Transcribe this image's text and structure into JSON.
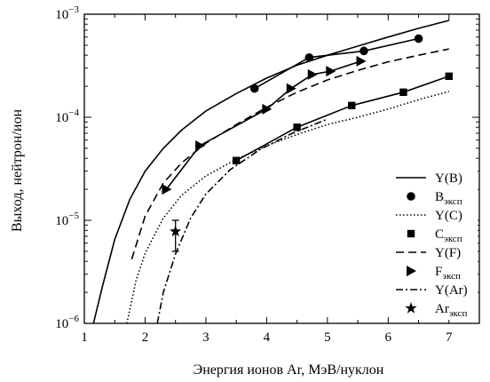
{
  "chart_data": {
    "type": "line",
    "title": "",
    "xlabel": "Энергия ионов Ar, МэВ/нуклон",
    "ylabel": "Выход, нейтрон/ион",
    "xlim": [
      1,
      7.5
    ],
    "ylim": [
      1e-06,
      0.001
    ],
    "yscale": "log",
    "grid": false,
    "legend_position": "right",
    "x_ticks": [
      {
        "value": 1,
        "label": "1"
      },
      {
        "value": 2,
        "label": "2"
      },
      {
        "value": 3,
        "label": "3"
      },
      {
        "value": 4,
        "label": "4"
      },
      {
        "value": 5,
        "label": "5"
      },
      {
        "value": 6,
        "label": "6"
      },
      {
        "value": 7,
        "label": "7"
      }
    ],
    "y_ticks": [
      {
        "value": 1e-06,
        "base": "10",
        "exp": "−6"
      },
      {
        "value": 1e-05,
        "base": "10",
        "exp": "−5"
      },
      {
        "value": 0.0001,
        "base": "10",
        "exp": "−4"
      },
      {
        "value": 0.001,
        "base": "10",
        "exp": "−3"
      }
    ],
    "series": [
      {
        "name": "Y(B)",
        "kind": "line",
        "dash": "solid",
        "x": [
          1.15,
          1.3,
          1.5,
          1.75,
          2.0,
          2.3,
          2.6,
          3.0,
          3.5,
          4.0,
          4.5,
          5.0,
          5.5,
          6.0,
          6.5,
          7.0
        ],
        "y": [
          1e-06,
          2.3e-06,
          6.5e-06,
          1.6e-05,
          3e-05,
          5e-05,
          7.5e-05,
          0.000115,
          0.00017,
          0.00024,
          0.00032,
          0.0004,
          0.00049,
          0.0006,
          0.00073,
          0.00087
        ]
      },
      {
        "name": "Bэксп",
        "name_main": "B",
        "name_sub": "эксп",
        "kind": "markers",
        "marker": "circle",
        "x": [
          3.8,
          4.7,
          5.6,
          6.5
        ],
        "y": [
          0.00019,
          0.00038,
          0.00044,
          0.00058
        ]
      },
      {
        "name": "Y(C)",
        "kind": "line",
        "dash": "dotted",
        "x": [
          1.7,
          1.85,
          2.0,
          2.3,
          2.6,
          3.0,
          3.5,
          4.0,
          4.5,
          5.0,
          5.5,
          6.0,
          6.5,
          7.0
        ],
        "y": [
          1e-06,
          2.6e-06,
          4.8e-06,
          1.05e-05,
          1.75e-05,
          2.7e-05,
          3.9e-05,
          5.3e-05,
          6.8e-05,
          8.5e-05,
          0.0001,
          0.00012,
          0.000148,
          0.000178
        ]
      },
      {
        "name": "Cэксп",
        "name_main": "C",
        "name_sub": "эксп",
        "kind": "markers",
        "marker": "square",
        "x": [
          3.5,
          4.5,
          5.4,
          6.25,
          7.0
        ],
        "y": [
          3.8e-05,
          8e-05,
          0.00013,
          0.000175,
          0.00025
        ]
      },
      {
        "name": "Y(F)",
        "kind": "line",
        "dash": "dashed",
        "x": [
          1.78,
          2.0,
          2.3,
          2.6,
          3.0,
          3.5,
          4.0,
          4.5,
          5.0,
          5.5,
          6.0,
          6.5,
          7.0
        ],
        "y": [
          4.2e-06,
          1.1e-05,
          2.3e-05,
          3.6e-05,
          5.6e-05,
          8.5e-05,
          0.000125,
          0.000175,
          0.00023,
          0.000285,
          0.000345,
          0.0004,
          0.00046
        ]
      },
      {
        "name": "Fэксп",
        "name_main": "F",
        "name_sub": "эксп",
        "kind": "markers+line",
        "marker": "triangle-right",
        "x": [
          2.35,
          2.9,
          4.0,
          4.4,
          4.75,
          5.05,
          5.55
        ],
        "y": [
          2e-05,
          5.3e-05,
          0.00012,
          0.00019,
          0.00026,
          0.00028,
          0.00035
        ]
      },
      {
        "name": "Y(Ar)",
        "kind": "line",
        "dash": "dashdot",
        "x": [
          2.2,
          2.3,
          2.5,
          2.75,
          3.0,
          3.4,
          3.9,
          4.4,
          4.8,
          5.0
        ],
        "y": [
          1e-06,
          2e-06,
          4.7e-06,
          1.05e-05,
          1.8e-05,
          3.1e-05,
          4.9e-05,
          6.9e-05,
          8.6e-05,
          9.6e-05
        ]
      },
      {
        "name": "Arэксп",
        "name_main": "Ar",
        "name_sub": "эксп",
        "kind": "markers",
        "marker": "star",
        "x": [
          2.5
        ],
        "y": [
          7.8e-06
        ],
        "yerr_low": [
          5e-06
        ],
        "yerr_high": [
          1e-05
        ]
      }
    ],
    "connector_lines": [
      {
        "series": "Bэксп",
        "x": [
          3.8,
          4.7,
          5.6,
          6.5
        ],
        "y": [
          0.00019,
          0.00038,
          0.00044,
          0.00058
        ]
      },
      {
        "series": "Cэксп",
        "x": [
          3.5,
          4.5,
          5.4,
          6.25,
          7.0
        ],
        "y": [
          3.8e-05,
          8e-05,
          0.00013,
          0.000175,
          0.00025
        ]
      }
    ]
  }
}
